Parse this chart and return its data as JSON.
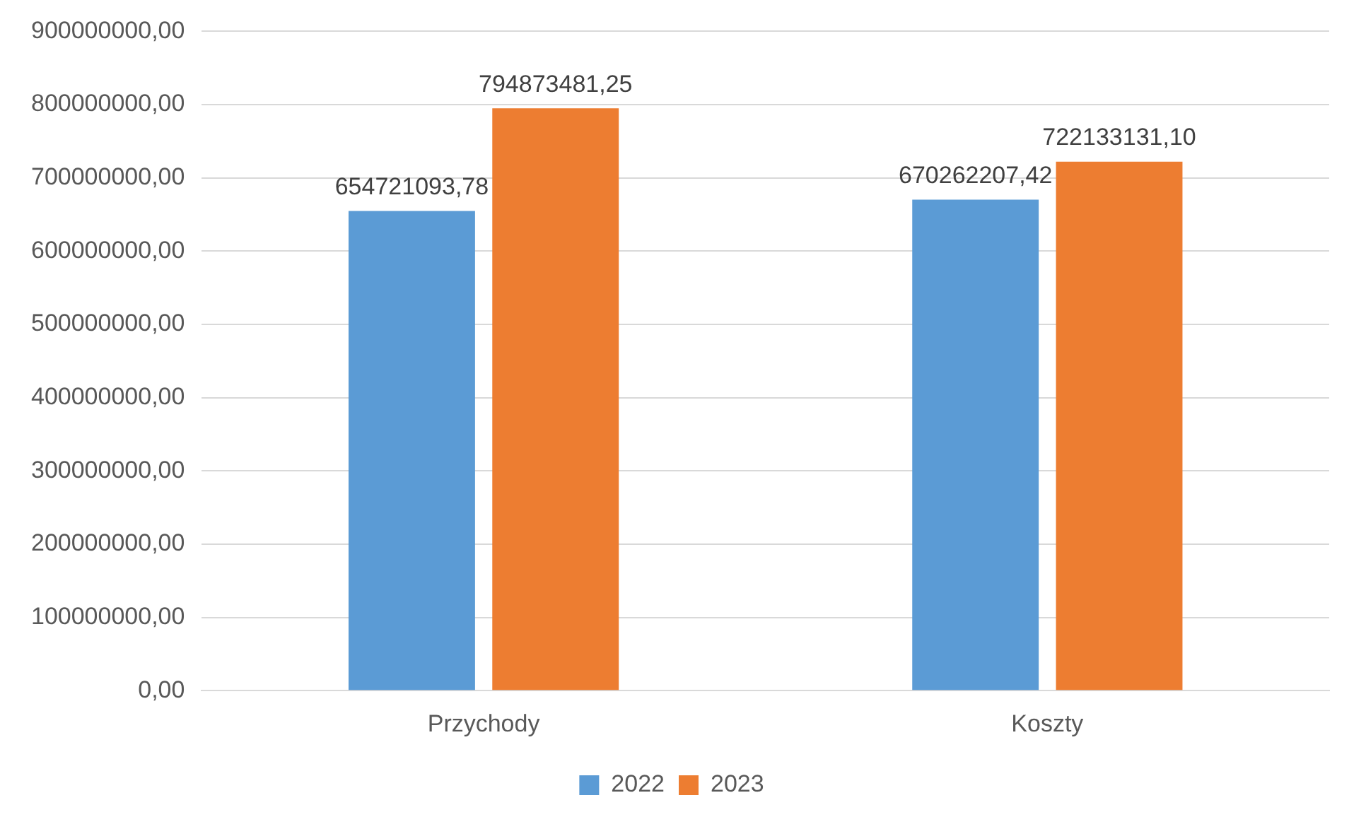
{
  "chart_data": {
    "type": "bar",
    "categories": [
      "Przychody",
      "Koszty"
    ],
    "series": [
      {
        "name": "2022",
        "color": "#5b9bd5",
        "values": [
          654721093.78,
          670262207.42
        ],
        "value_labels": [
          "654721093,78",
          "670262207,42"
        ]
      },
      {
        "name": "2023",
        "color": "#ed7d31",
        "values": [
          794873481.25,
          722133131.1
        ],
        "value_labels": [
          "794873481,25",
          "722133131,10"
        ]
      }
    ],
    "ylim": [
      0,
      900000000
    ],
    "yticks": [
      {
        "value": 0,
        "label": "0,00"
      },
      {
        "value": 100000000,
        "label": "100000000,00"
      },
      {
        "value": 200000000,
        "label": "200000000,00"
      },
      {
        "value": 300000000,
        "label": "300000000,00"
      },
      {
        "value": 400000000,
        "label": "400000000,00"
      },
      {
        "value": 500000000,
        "label": "500000000,00"
      },
      {
        "value": 600000000,
        "label": "600000000,00"
      },
      {
        "value": 700000000,
        "label": "700000000,00"
      },
      {
        "value": 800000000,
        "label": "800000000,00"
      },
      {
        "value": 900000000,
        "label": "900000000,00"
      }
    ],
    "grid": "y",
    "legend": "bottom"
  }
}
